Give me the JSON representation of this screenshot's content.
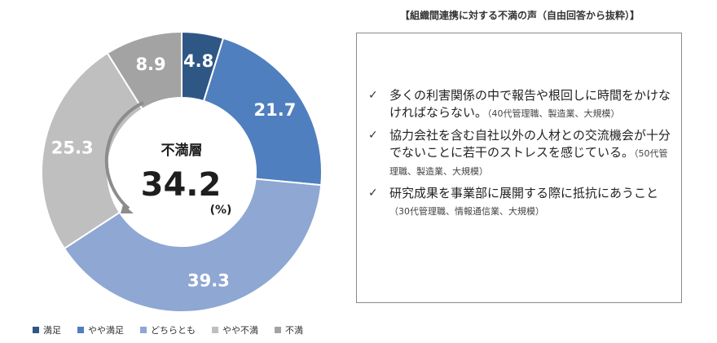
{
  "chart_data": {
    "type": "pie",
    "donut": true,
    "categories": [
      "満足",
      "やや満足",
      "どちらとも",
      "やや不満",
      "不満"
    ],
    "values": [
      4.8,
      21.7,
      39.3,
      25.3,
      8.9
    ],
    "colors": [
      "#2f5785",
      "#4f7fbe",
      "#8ea7d3",
      "#bfbfbf",
      "#a3a3a3"
    ],
    "legend_position": "bottom",
    "center_title": "不満層",
    "center_value": "34.2",
    "center_unit": "(%)"
  },
  "quotes": {
    "title": "【組織間連携に対する不満の声（自由回答から抜粋）】",
    "items": [
      {
        "text": "多くの利害関係の中で報告や根回しに時間をかけなければならない。",
        "meta": "（40代管理職、製造業、大規模）"
      },
      {
        "text": "協力会社を含む自社以外の人材との交流機会が十分でないことに若干のストレスを感じている。",
        "meta": "（50代管理職、製造業、大規模）"
      },
      {
        "text": "研究成果を事業部に展開する際に抵抗にあうこと",
        "meta": "（30代管理職、情報通信業、大規模）"
      }
    ]
  }
}
